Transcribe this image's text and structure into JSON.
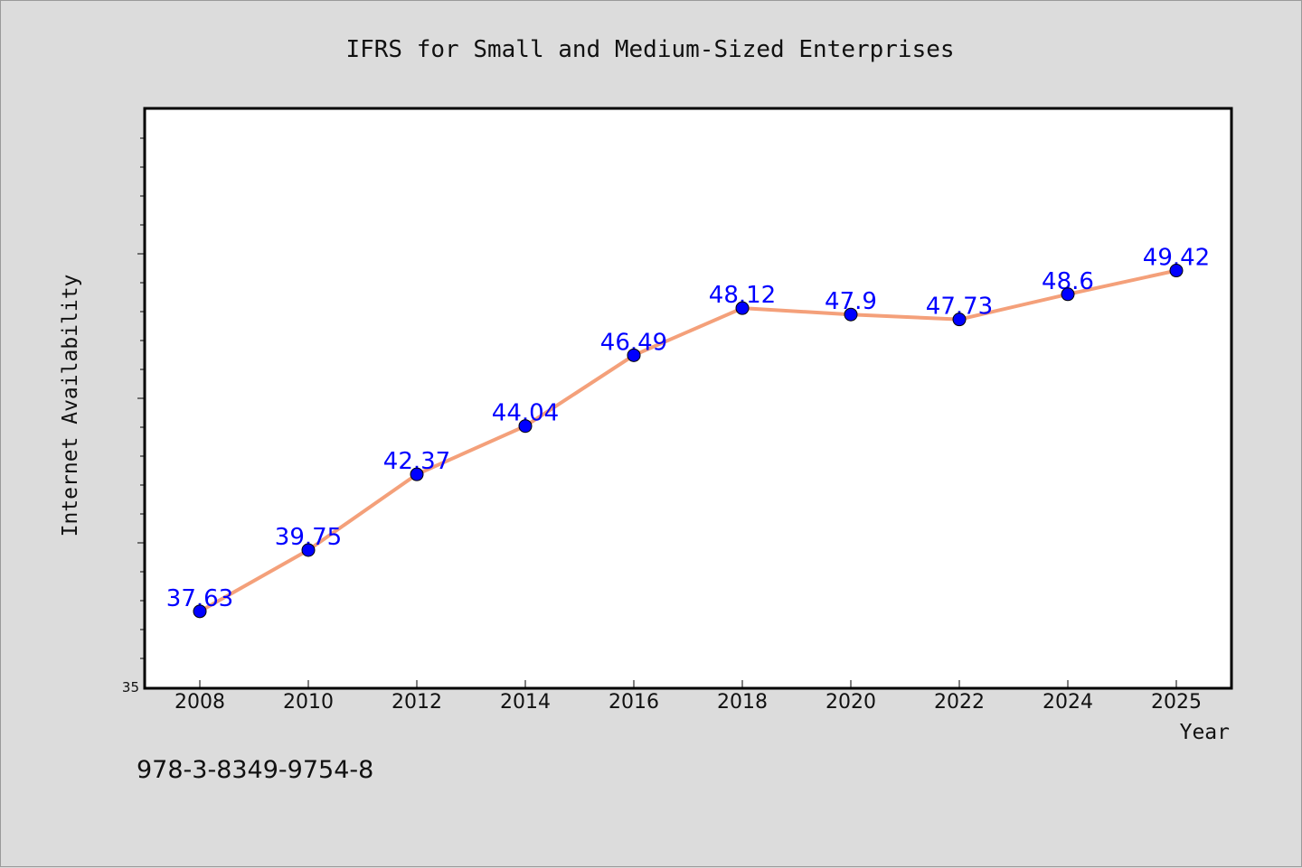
{
  "footer_code": "978-3-8349-9754-8",
  "colors": {
    "background": "#dcdcdc",
    "plot_background": "#ffffff",
    "line": "#f4a07a",
    "marker": "#0000ff",
    "label": "#0000ff",
    "text": "#111111"
  },
  "chart_data": {
    "type": "line",
    "title": "IFRS for Small and Medium-Sized Enterprises",
    "xlabel": "Year",
    "ylabel": "Internet Availability",
    "categories": [
      "2008",
      "2010",
      "2012",
      "2014",
      "2016",
      "2018",
      "2020",
      "2022",
      "2024",
      "2025"
    ],
    "series": [
      {
        "values": [
          37.63,
          39.75,
          42.37,
          44.04,
          46.49,
          48.12,
          47.9,
          47.73,
          48.6,
          49.42
        ],
        "labels": [
          "37.63",
          "39.75",
          "42.37",
          "44.04",
          "46.49",
          "48.12",
          "47.9",
          "47.73",
          "48.6",
          "49.42"
        ]
      }
    ],
    "ylim": [
      35,
      55
    ],
    "y_tick_labels": [
      "35"
    ],
    "y_tick_step": 1,
    "grid": false,
    "legend": "none"
  }
}
